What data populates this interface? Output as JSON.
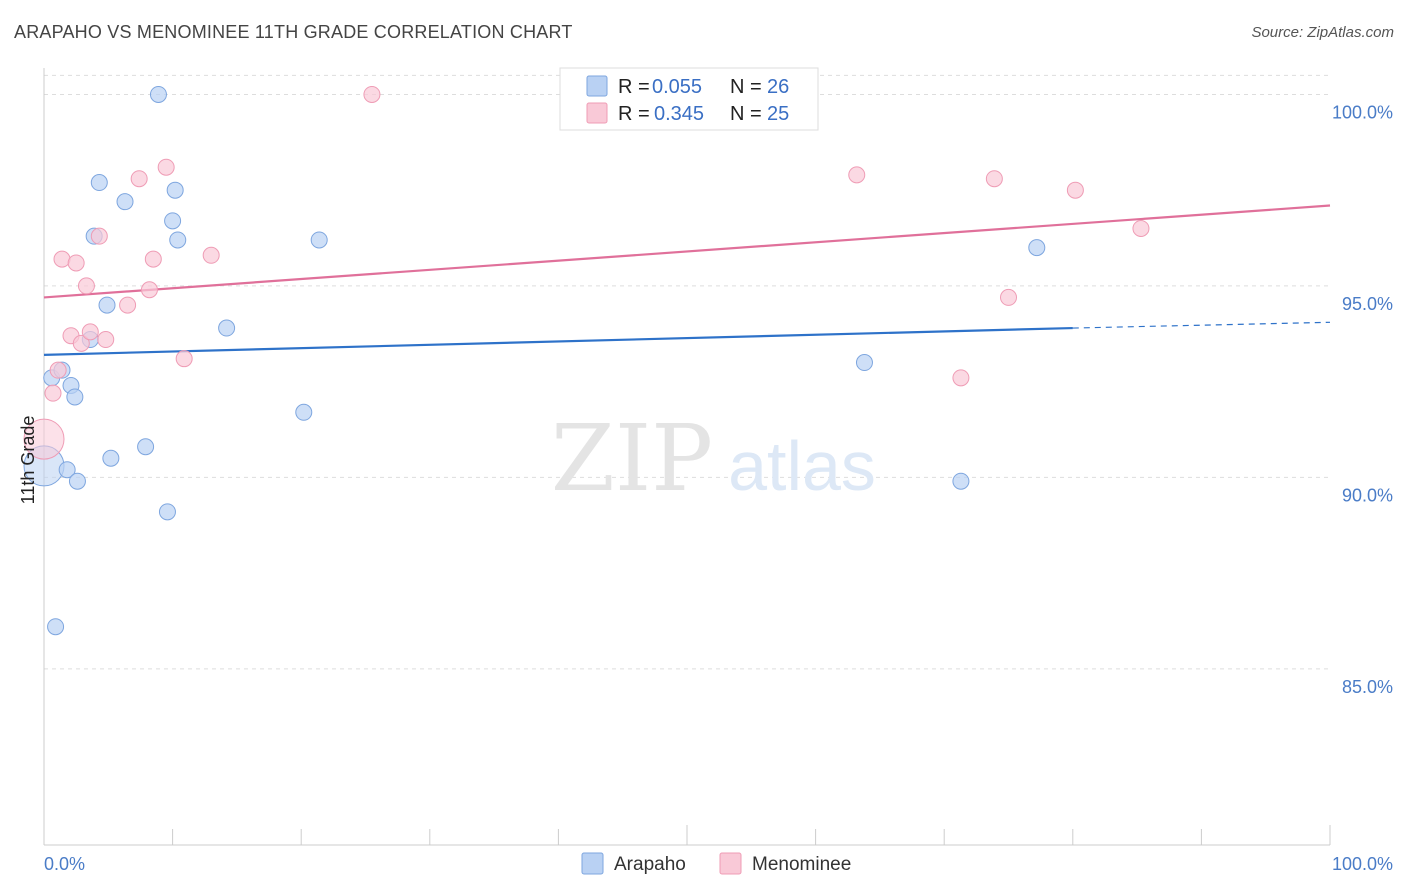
{
  "title": "ARAPAHO VS MENOMINEE 11TH GRADE CORRELATION CHART",
  "source": "Source: ZipAtlas.com",
  "watermark": {
    "zip": "ZIP",
    "atlas": "atlas"
  },
  "colors": {
    "arapaho_fill": "#b9d1f3",
    "arapaho_stroke": "#7ea6df",
    "arapaho_line": "#2e72c9",
    "menominee_fill": "#f9c9d7",
    "menominee_stroke": "#ef9cb5",
    "menominee_line": "#e0709a",
    "tick_text": "#4a7cc7",
    "grid": "#dddddd"
  },
  "legend": {
    "rows": [
      {
        "r_label": "R =",
        "r_value": "0.055",
        "n_label": "N =",
        "n_value": "26"
      },
      {
        "r_label": "R =",
        "r_value": "0.345",
        "n_label": "N =",
        "n_value": "25"
      }
    ]
  },
  "chart_data": {
    "type": "scatter",
    "title": "ARAPAHO VS MENOMINEE 11TH GRADE CORRELATION CHART",
    "xlabel": "",
    "ylabel": "11th Grade",
    "xlim": [
      0,
      100
    ],
    "ylim": [
      80.4,
      100.9
    ],
    "x_tick_labels": [
      "0.0%",
      "100.0%"
    ],
    "y_ticks": [
      85,
      90,
      95,
      100
    ],
    "y_tick_labels": [
      "85.0%",
      "90.0%",
      "95.0%",
      "100.0%"
    ],
    "grid": true,
    "series": [
      {
        "name": "Arapaho",
        "r": 0.055,
        "n": 26,
        "trend": {
          "x0": 0,
          "y0": 93.2,
          "x1": 80,
          "y1": 93.9,
          "dashed_to_x": 100,
          "dashed_to_y": 94.05
        },
        "points": [
          {
            "x": 0.0,
            "y": 90.3,
            "big": true
          },
          {
            "x": 0.6,
            "y": 92.6
          },
          {
            "x": 0.9,
            "y": 86.1
          },
          {
            "x": 1.4,
            "y": 92.8
          },
          {
            "x": 1.8,
            "y": 90.2
          },
          {
            "x": 2.1,
            "y": 92.4
          },
          {
            "x": 2.4,
            "y": 92.1
          },
          {
            "x": 2.6,
            "y": 89.9
          },
          {
            "x": 3.6,
            "y": 93.6
          },
          {
            "x": 3.9,
            "y": 96.3
          },
          {
            "x": 4.3,
            "y": 97.7
          },
          {
            "x": 4.9,
            "y": 94.5
          },
          {
            "x": 5.2,
            "y": 90.5
          },
          {
            "x": 6.3,
            "y": 97.2
          },
          {
            "x": 7.9,
            "y": 90.8
          },
          {
            "x": 8.9,
            "y": 100.0
          },
          {
            "x": 9.6,
            "y": 89.1
          },
          {
            "x": 10.0,
            "y": 96.7
          },
          {
            "x": 10.2,
            "y": 97.5
          },
          {
            "x": 10.4,
            "y": 96.2
          },
          {
            "x": 14.2,
            "y": 93.9
          },
          {
            "x": 20.2,
            "y": 91.7
          },
          {
            "x": 21.4,
            "y": 96.2
          },
          {
            "x": 63.8,
            "y": 93.0
          },
          {
            "x": 71.3,
            "y": 89.9
          },
          {
            "x": 77.2,
            "y": 96.0
          }
        ]
      },
      {
        "name": "Menominee",
        "r": 0.345,
        "n": 25,
        "trend": {
          "x0": 0,
          "y0": 94.7,
          "x1": 100,
          "y1": 97.1
        },
        "points": [
          {
            "x": 0.0,
            "y": 91.0,
            "big": true
          },
          {
            "x": 0.7,
            "y": 92.2
          },
          {
            "x": 1.1,
            "y": 92.8
          },
          {
            "x": 1.4,
            "y": 95.7
          },
          {
            "x": 2.1,
            "y": 93.7
          },
          {
            "x": 2.5,
            "y": 95.6
          },
          {
            "x": 2.9,
            "y": 93.5
          },
          {
            "x": 3.3,
            "y": 95.0
          },
          {
            "x": 3.6,
            "y": 93.8
          },
          {
            "x": 4.3,
            "y": 96.3
          },
          {
            "x": 4.8,
            "y": 93.6
          },
          {
            "x": 6.5,
            "y": 94.5
          },
          {
            "x": 7.4,
            "y": 97.8
          },
          {
            "x": 8.2,
            "y": 94.9
          },
          {
            "x": 8.5,
            "y": 95.7
          },
          {
            "x": 9.5,
            "y": 98.1
          },
          {
            "x": 10.9,
            "y": 93.1
          },
          {
            "x": 13.0,
            "y": 95.8
          },
          {
            "x": 25.5,
            "y": 100.0
          },
          {
            "x": 63.2,
            "y": 97.9
          },
          {
            "x": 71.3,
            "y": 92.6
          },
          {
            "x": 73.9,
            "y": 97.8
          },
          {
            "x": 75.0,
            "y": 94.7
          },
          {
            "x": 80.2,
            "y": 97.5
          },
          {
            "x": 85.3,
            "y": 96.5
          }
        ]
      }
    ]
  }
}
